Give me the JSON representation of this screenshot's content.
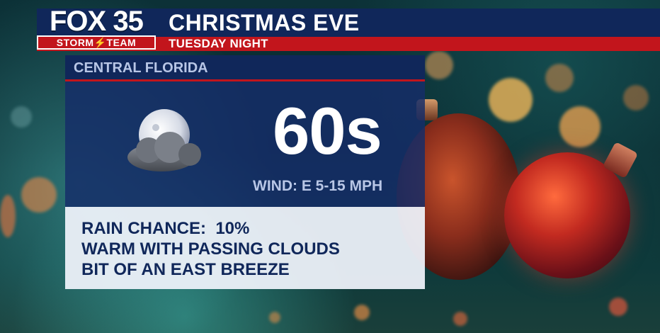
{
  "header": {
    "logo_top": "FOX 35",
    "logo_bottom": "STORM⚡TEAM",
    "title": "CHRISTMAS EVE",
    "subtitle": "TUESDAY NIGHT"
  },
  "forecast": {
    "region": "CENTRAL FLORIDA",
    "condition_icon": "moon-behind-cloud-icon",
    "temperature": "60s",
    "wind": "WIND: E 5-15 MPH",
    "details": [
      "RAIN CHANCE:  10%",
      "WARM WITH PASSING CLOUDS",
      "BIT OF AN EAST BREEZE"
    ]
  },
  "colors": {
    "brand_navy": "#10275a",
    "brand_red": "#c2151c",
    "label_blue": "#b8c6e6"
  }
}
